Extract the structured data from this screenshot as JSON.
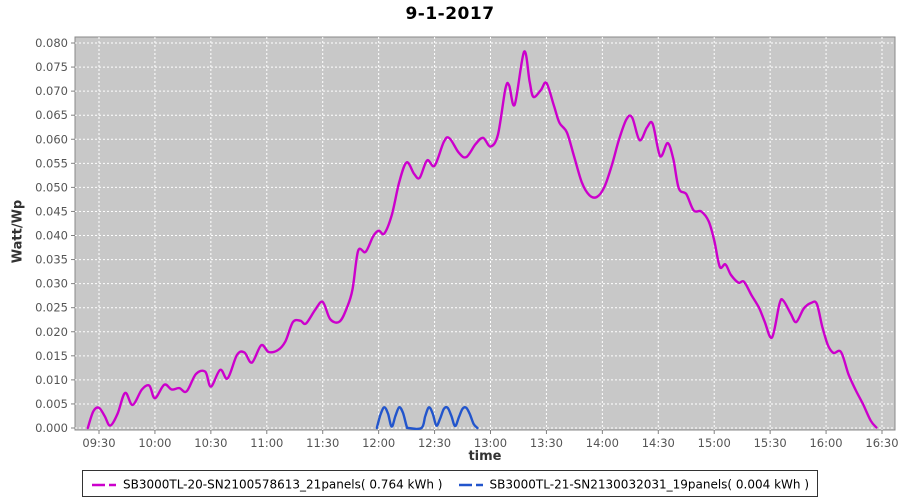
{
  "title": "9-1-2017",
  "chart_data": {
    "type": "line",
    "title": "9-1-2017",
    "xlabel": "time",
    "ylabel": "Watt/Wp",
    "grid": true,
    "plot_bg": "#c8c8c8",
    "grid_color": "#ffffff",
    "tick_color": "#808080",
    "legend_position": "bottom",
    "ylim": [
      0.0,
      0.08
    ],
    "x_ticks": [
      "09:30",
      "10:00",
      "10:30",
      "11:00",
      "11:30",
      "12:00",
      "12:30",
      "13:00",
      "13:30",
      "14:00",
      "14:30",
      "15:00",
      "15:30",
      "16:00",
      "16:30"
    ],
    "y_ticks": [
      "0.000",
      "0.005",
      "0.010",
      "0.015",
      "0.020",
      "0.025",
      "0.030",
      "0.035",
      "0.040",
      "0.045",
      "0.050",
      "0.055",
      "0.060",
      "0.065",
      "0.070",
      "0.075",
      "0.080"
    ],
    "series": [
      {
        "name": "SB3000TL-20-SN2100578613_21panels( 0.764 kWh )",
        "color": "#cc00cc",
        "points": [
          [
            "09:24",
            0.0
          ],
          [
            "09:27",
            0.0035
          ],
          [
            "09:30",
            0.0042
          ],
          [
            "09:33",
            0.0025
          ],
          [
            "09:36",
            0.0005
          ],
          [
            "09:40",
            0.003
          ],
          [
            "09:44",
            0.0073
          ],
          [
            "09:48",
            0.0048
          ],
          [
            "09:53",
            0.008
          ],
          [
            "09:57",
            0.0088
          ],
          [
            "10:00",
            0.0062
          ],
          [
            "10:05",
            0.009
          ],
          [
            "10:09",
            0.008
          ],
          [
            "10:13",
            0.0083
          ],
          [
            "10:17",
            0.0076
          ],
          [
            "10:22",
            0.0112
          ],
          [
            "10:27",
            0.0117
          ],
          [
            "10:30",
            0.0086
          ],
          [
            "10:35",
            0.0121
          ],
          [
            "10:39",
            0.0103
          ],
          [
            "10:44",
            0.0152
          ],
          [
            "10:48",
            0.0157
          ],
          [
            "10:52",
            0.0136
          ],
          [
            "10:57",
            0.0172
          ],
          [
            "11:01",
            0.0158
          ],
          [
            "11:06",
            0.0162
          ],
          [
            "11:10",
            0.018
          ],
          [
            "11:14",
            0.022
          ],
          [
            "11:18",
            0.0223
          ],
          [
            "11:21",
            0.0217
          ],
          [
            "11:26",
            0.0246
          ],
          [
            "11:30",
            0.0262
          ],
          [
            "11:34",
            0.0226
          ],
          [
            "11:39",
            0.0221
          ],
          [
            "11:43",
            0.025
          ],
          [
            "11:46",
            0.0288
          ],
          [
            "11:49",
            0.0368
          ],
          [
            "11:53",
            0.0366
          ],
          [
            "11:57",
            0.0398
          ],
          [
            "12:00",
            0.041
          ],
          [
            "12:03",
            0.0404
          ],
          [
            "12:07",
            0.0442
          ],
          [
            "12:11",
            0.051
          ],
          [
            "12:15",
            0.0552
          ],
          [
            "12:19",
            0.0528
          ],
          [
            "12:22",
            0.052
          ],
          [
            "12:26",
            0.0556
          ],
          [
            "12:30",
            0.0545
          ],
          [
            "12:35",
            0.0595
          ],
          [
            "12:38",
            0.0602
          ],
          [
            "12:43",
            0.0572
          ],
          [
            "12:47",
            0.0563
          ],
          [
            "12:52",
            0.059
          ],
          [
            "12:56",
            0.0603
          ],
          [
            "13:00",
            0.0585
          ],
          [
            "13:04",
            0.061
          ],
          [
            "13:08",
            0.0705
          ],
          [
            "13:10",
            0.0712
          ],
          [
            "13:13",
            0.0672
          ],
          [
            "13:18",
            0.0782
          ],
          [
            "13:21",
            0.072
          ],
          [
            "13:23",
            0.0688
          ],
          [
            "13:27",
            0.0702
          ],
          [
            "13:30",
            0.0717
          ],
          [
            "13:34",
            0.067
          ],
          [
            "13:37",
            0.0634
          ],
          [
            "13:41",
            0.0614
          ],
          [
            "13:45",
            0.0562
          ],
          [
            "13:49",
            0.051
          ],
          [
            "13:53",
            0.0484
          ],
          [
            "13:57",
            0.048
          ],
          [
            "14:01",
            0.05
          ],
          [
            "14:05",
            0.0545
          ],
          [
            "14:09",
            0.06
          ],
          [
            "14:13",
            0.0642
          ],
          [
            "14:16",
            0.0645
          ],
          [
            "14:20",
            0.0598
          ],
          [
            "14:24",
            0.0625
          ],
          [
            "14:27",
            0.0632
          ],
          [
            "14:31",
            0.0565
          ],
          [
            "14:35",
            0.0592
          ],
          [
            "14:38",
            0.056
          ],
          [
            "14:41",
            0.0498
          ],
          [
            "14:45",
            0.0486
          ],
          [
            "14:49",
            0.0452
          ],
          [
            "14:53",
            0.045
          ],
          [
            "14:57",
            0.043
          ],
          [
            "15:00",
            0.039
          ],
          [
            "15:03",
            0.0335
          ],
          [
            "15:06",
            0.034
          ],
          [
            "15:09",
            0.0318
          ],
          [
            "15:13",
            0.0302
          ],
          [
            "15:16",
            0.0304
          ],
          [
            "15:20",
            0.0276
          ],
          [
            "15:24",
            0.025
          ],
          [
            "15:27",
            0.0222
          ],
          [
            "15:31",
            0.0188
          ],
          [
            "15:35",
            0.0258
          ],
          [
            "15:37",
            0.0265
          ],
          [
            "15:41",
            0.0238
          ],
          [
            "15:44",
            0.022
          ],
          [
            "15:48",
            0.0248
          ],
          [
            "15:52",
            0.026
          ],
          [
            "15:55",
            0.0258
          ],
          [
            "15:58",
            0.021
          ],
          [
            "16:01",
            0.0172
          ],
          [
            "16:04",
            0.0156
          ],
          [
            "16:08",
            0.0158
          ],
          [
            "16:12",
            0.0112
          ],
          [
            "16:16",
            0.0078
          ],
          [
            "16:20",
            0.0048
          ],
          [
            "16:24",
            0.0015
          ],
          [
            "16:27",
            0.0001
          ]
        ]
      },
      {
        "name": "SB3000TL-21-SN2130032031_19panels( 0.004 kWh )",
        "color": "#2255cc",
        "points": [
          [
            "11:59",
            0.0
          ],
          [
            "12:01",
            0.0028
          ],
          [
            "12:03",
            0.0043
          ],
          [
            "12:05",
            0.003
          ],
          [
            "12:07",
            0.0003
          ],
          [
            "12:09",
            0.0025
          ],
          [
            "12:11",
            0.0043
          ],
          [
            "12:13",
            0.0032
          ],
          [
            "12:15",
            0.0004
          ],
          [
            "12:16",
            0.0
          ],
          [
            "12:23",
            0.0
          ],
          [
            "12:25",
            0.0025
          ],
          [
            "12:27",
            0.0043
          ],
          [
            "12:29",
            0.003
          ],
          [
            "12:31",
            0.0005
          ],
          [
            "12:33",
            0.002
          ],
          [
            "12:35",
            0.004
          ],
          [
            "12:37",
            0.0042
          ],
          [
            "12:39",
            0.0025
          ],
          [
            "12:41",
            0.0004
          ],
          [
            "12:43",
            0.0022
          ],
          [
            "12:45",
            0.004
          ],
          [
            "12:47",
            0.0042
          ],
          [
            "12:49",
            0.0028
          ],
          [
            "12:51",
            0.0008
          ],
          [
            "12:53",
            0.0
          ]
        ]
      }
    ]
  }
}
